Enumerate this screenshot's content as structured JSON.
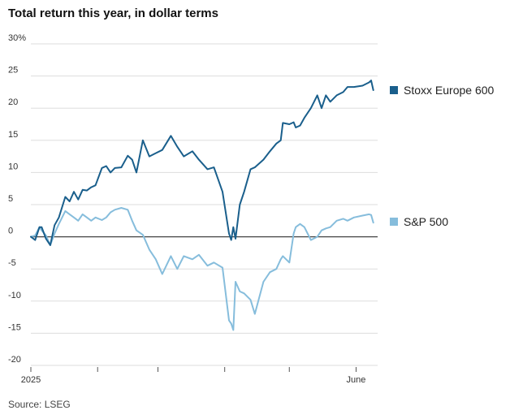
{
  "chart_data": {
    "type": "line",
    "title": "Total return this year, in dollar terms",
    "source": "Source: LSEG",
    "ylim": [
      -20,
      30
    ],
    "yticks": [
      {
        "value": 30,
        "label": "30%"
      },
      {
        "value": 25,
        "label": "25"
      },
      {
        "value": 20,
        "label": "20"
      },
      {
        "value": 15,
        "label": "15"
      },
      {
        "value": 10,
        "label": "10"
      },
      {
        "value": 5,
        "label": "5"
      },
      {
        "value": 0,
        "label": "0"
      },
      {
        "value": -5,
        "label": "-5"
      },
      {
        "value": -10,
        "label": "-10"
      },
      {
        "value": -15,
        "label": "-15"
      },
      {
        "value": -20,
        "label": "-20"
      }
    ],
    "xlim": [
      "2025-01-01",
      "2025-06-11"
    ],
    "xticks": [
      {
        "date": "2025-01-01",
        "label": "2025"
      },
      {
        "date": "2025-02-01",
        "label": ""
      },
      {
        "date": "2025-03-01",
        "label": ""
      },
      {
        "date": "2025-04-01",
        "label": ""
      },
      {
        "date": "2025-05-01",
        "label": ""
      },
      {
        "date": "2025-06-01",
        "label": "June"
      }
    ],
    "grid": true,
    "legend_placement": "right",
    "series": [
      {
        "name": "Stoxx Europe 600",
        "color": "#1a5f8c",
        "points": [
          [
            "2025-01-01",
            0.0
          ],
          [
            "2025-01-03",
            -0.5
          ],
          [
            "2025-01-05",
            1.5
          ],
          [
            "2025-01-06",
            1.5
          ],
          [
            "2025-01-08",
            -0.3
          ],
          [
            "2025-01-10",
            -1.3
          ],
          [
            "2025-01-12",
            1.8
          ],
          [
            "2025-01-14",
            3.0
          ],
          [
            "2025-01-17",
            6.2
          ],
          [
            "2025-01-19",
            5.5
          ],
          [
            "2025-01-21",
            7.0
          ],
          [
            "2025-01-23",
            5.8
          ],
          [
            "2025-01-25",
            7.3
          ],
          [
            "2025-01-27",
            7.2
          ],
          [
            "2025-01-29",
            7.7
          ],
          [
            "2025-01-31",
            8.0
          ],
          [
            "2025-02-03",
            10.7
          ],
          [
            "2025-02-05",
            11.0
          ],
          [
            "2025-02-07",
            10.0
          ],
          [
            "2025-02-09",
            10.7
          ],
          [
            "2025-02-12",
            10.8
          ],
          [
            "2025-02-15",
            12.6
          ],
          [
            "2025-02-17",
            12.0
          ],
          [
            "2025-02-19",
            10.0
          ],
          [
            "2025-02-22",
            15.0
          ],
          [
            "2025-02-25",
            12.5
          ],
          [
            "2025-02-28",
            13.0
          ],
          [
            "2025-03-03",
            13.5
          ],
          [
            "2025-03-07",
            15.7
          ],
          [
            "2025-03-10",
            14.0
          ],
          [
            "2025-03-13",
            12.5
          ],
          [
            "2025-03-17",
            13.3
          ],
          [
            "2025-03-20",
            12.0
          ],
          [
            "2025-03-24",
            10.5
          ],
          [
            "2025-03-27",
            10.8
          ],
          [
            "2025-03-31",
            7.0
          ],
          [
            "2025-04-03",
            0.5
          ],
          [
            "2025-04-04",
            -0.5
          ],
          [
            "2025-04-05",
            1.5
          ],
          [
            "2025-04-06",
            -0.3
          ],
          [
            "2025-04-08",
            5.0
          ],
          [
            "2025-04-10",
            7.0
          ],
          [
            "2025-04-13",
            10.5
          ],
          [
            "2025-04-15",
            10.8
          ],
          [
            "2025-04-19",
            12.0
          ],
          [
            "2025-04-22",
            13.3
          ],
          [
            "2025-04-25",
            14.5
          ],
          [
            "2025-04-27",
            15.0
          ],
          [
            "2025-04-28",
            17.7
          ],
          [
            "2025-05-01",
            17.5
          ],
          [
            "2025-05-03",
            17.8
          ],
          [
            "2025-05-04",
            17.0
          ],
          [
            "2025-05-06",
            17.3
          ],
          [
            "2025-05-08",
            18.5
          ],
          [
            "2025-05-11",
            20.0
          ],
          [
            "2025-05-14",
            22.0
          ],
          [
            "2025-05-16",
            20.0
          ],
          [
            "2025-05-18",
            22.0
          ],
          [
            "2025-05-20",
            21.0
          ],
          [
            "2025-05-23",
            22.0
          ],
          [
            "2025-05-26",
            22.5
          ],
          [
            "2025-05-28",
            23.3
          ],
          [
            "2025-05-31",
            23.3
          ],
          [
            "2025-06-04",
            23.5
          ],
          [
            "2025-06-07",
            24.0
          ],
          [
            "2025-06-08",
            24.3
          ],
          [
            "2025-06-09",
            22.8
          ]
        ]
      },
      {
        "name": "S&P 500",
        "color": "#86bddc",
        "points": [
          [
            "2025-01-01",
            0.0
          ],
          [
            "2025-01-03",
            0.2
          ],
          [
            "2025-01-05",
            1.5
          ],
          [
            "2025-01-06",
            1.0
          ],
          [
            "2025-01-08",
            0.2
          ],
          [
            "2025-01-10",
            -1.3
          ],
          [
            "2025-01-12",
            0.5
          ],
          [
            "2025-01-14",
            2.0
          ],
          [
            "2025-01-17",
            4.0
          ],
          [
            "2025-01-19",
            3.5
          ],
          [
            "2025-01-21",
            3.0
          ],
          [
            "2025-01-23",
            2.5
          ],
          [
            "2025-01-25",
            3.5
          ],
          [
            "2025-01-27",
            3.0
          ],
          [
            "2025-01-29",
            2.5
          ],
          [
            "2025-01-31",
            3.0
          ],
          [
            "2025-02-03",
            2.6
          ],
          [
            "2025-02-05",
            3.0
          ],
          [
            "2025-02-07",
            3.8
          ],
          [
            "2025-02-09",
            4.2
          ],
          [
            "2025-02-12",
            4.5
          ],
          [
            "2025-02-15",
            4.2
          ],
          [
            "2025-02-17",
            2.5
          ],
          [
            "2025-02-19",
            1.0
          ],
          [
            "2025-02-22",
            0.3
          ],
          [
            "2025-02-25",
            -2.0
          ],
          [
            "2025-02-28",
            -3.5
          ],
          [
            "2025-03-03",
            -5.8
          ],
          [
            "2025-03-07",
            -3.0
          ],
          [
            "2025-03-10",
            -5.0
          ],
          [
            "2025-03-13",
            -3.0
          ],
          [
            "2025-03-17",
            -3.5
          ],
          [
            "2025-03-20",
            -2.8
          ],
          [
            "2025-03-24",
            -4.5
          ],
          [
            "2025-03-27",
            -4.0
          ],
          [
            "2025-03-31",
            -4.8
          ],
          [
            "2025-04-03",
            -13.0
          ],
          [
            "2025-04-04",
            -13.5
          ],
          [
            "2025-04-05",
            -14.5
          ],
          [
            "2025-04-06",
            -7.0
          ],
          [
            "2025-04-08",
            -8.5
          ],
          [
            "2025-04-10",
            -8.8
          ],
          [
            "2025-04-13",
            -9.8
          ],
          [
            "2025-04-15",
            -12.0
          ],
          [
            "2025-04-19",
            -7.0
          ],
          [
            "2025-04-22",
            -5.5
          ],
          [
            "2025-04-25",
            -5.0
          ],
          [
            "2025-04-27",
            -3.5
          ],
          [
            "2025-04-28",
            -3.0
          ],
          [
            "2025-05-01",
            -4.0
          ],
          [
            "2025-05-03",
            0.5
          ],
          [
            "2025-05-04",
            1.5
          ],
          [
            "2025-05-06",
            2.0
          ],
          [
            "2025-05-08",
            1.5
          ],
          [
            "2025-05-11",
            -0.5
          ],
          [
            "2025-05-14",
            0.0
          ],
          [
            "2025-05-16",
            1.0
          ],
          [
            "2025-05-18",
            1.3
          ],
          [
            "2025-05-20",
            1.5
          ],
          [
            "2025-05-23",
            2.5
          ],
          [
            "2025-05-26",
            2.8
          ],
          [
            "2025-05-28",
            2.5
          ],
          [
            "2025-05-31",
            3.0
          ],
          [
            "2025-06-04",
            3.3
          ],
          [
            "2025-06-07",
            3.5
          ],
          [
            "2025-06-08",
            3.4
          ],
          [
            "2025-06-09",
            2.2
          ]
        ]
      }
    ]
  }
}
